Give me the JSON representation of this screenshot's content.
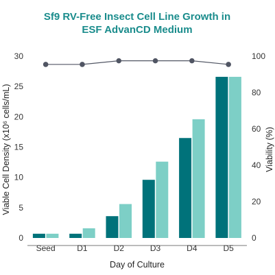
{
  "chart_data": {
    "type": "bar",
    "title_lines": [
      "Sf9 RV-Free Insect Cell Line Growth in",
      "ESF AdvanCD Medium"
    ],
    "xlabel": "Day of Culture",
    "ylabel": "Viable Cell Density (x10⁶ cells/mL)",
    "y2label": "Viability (%)",
    "categories": [
      "Seed",
      "D1",
      "D2",
      "D3",
      "D4",
      "D5"
    ],
    "ylim": [
      0,
      30
    ],
    "yticks": [
      "0",
      "5",
      "10",
      "15",
      "20",
      "25",
      "30"
    ],
    "y2lim": [
      0,
      100
    ],
    "y2ticks": [
      "0",
      "20",
      "40",
      "60",
      "80",
      "100"
    ],
    "series": [
      {
        "values": [
          0.7,
          0.7,
          3.6,
          9.6,
          16.5,
          26.6
        ],
        "color": "#00727a"
      },
      {
        "values": [
          0.7,
          1.6,
          5.6,
          12.6,
          19.6,
          26.6
        ],
        "color": "#7dcfc6"
      }
    ],
    "line_series": {
      "values": [
        95.5,
        95.5,
        97.5,
        97.5,
        97.5,
        95.5
      ],
      "axis": "right",
      "color": "#505563"
    },
    "grid": false,
    "legend": "none",
    "colors": {
      "title": "#1a8c8c",
      "axis": "#555555"
    }
  }
}
